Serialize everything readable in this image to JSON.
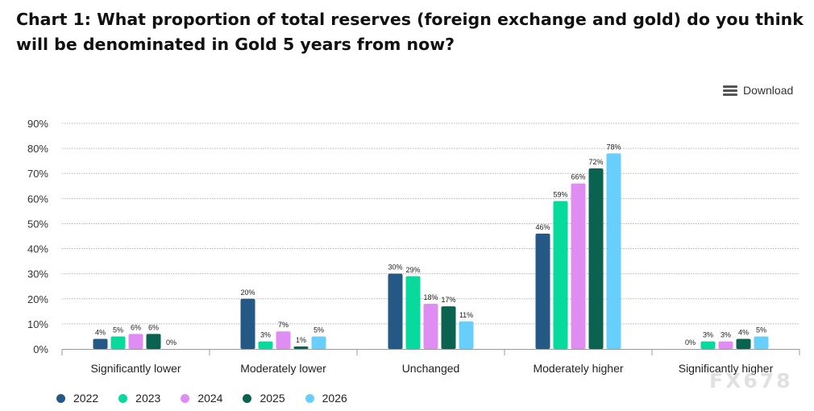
{
  "title": "Chart 1: What proportion of total reserves (foreign exchange and gold) do you think will be denominated in Gold 5 years from now?",
  "download_label": "Download",
  "download_icon": "hamburger-menu-icon",
  "watermark": "FX678",
  "chart_data": {
    "type": "bar",
    "title": "Chart 1: What proportion of total reserves (foreign exchange and gold) do you think will be denominated in Gold 5 years from now?",
    "categories": [
      "Significantly lower",
      "Moderately lower",
      "Unchanged",
      "Moderately higher",
      "Significantly higher"
    ],
    "series": [
      {
        "name": "2022",
        "color": "#245985",
        "values": [
          4,
          20,
          30,
          46,
          0
        ]
      },
      {
        "name": "2023",
        "color": "#08D99C",
        "values": [
          5,
          3,
          29,
          59,
          3
        ]
      },
      {
        "name": "2024",
        "color": "#E08DF3",
        "values": [
          6,
          7,
          18,
          66,
          3
        ]
      },
      {
        "name": "2025",
        "color": "#0A6251",
        "values": [
          6,
          1,
          17,
          72,
          4
        ]
      },
      {
        "name": "2026",
        "color": "#68CEFE",
        "values": [
          0,
          5,
          11,
          78,
          5
        ]
      }
    ],
    "ylim": [
      0,
      90
    ],
    "yticks": [
      0,
      10,
      20,
      30,
      40,
      50,
      60,
      70,
      80,
      90
    ],
    "ytick_format": "%",
    "data_label_format": "%",
    "grid": true,
    "legend_position": "bottom-left",
    "xlabel": "",
    "ylabel": ""
  }
}
